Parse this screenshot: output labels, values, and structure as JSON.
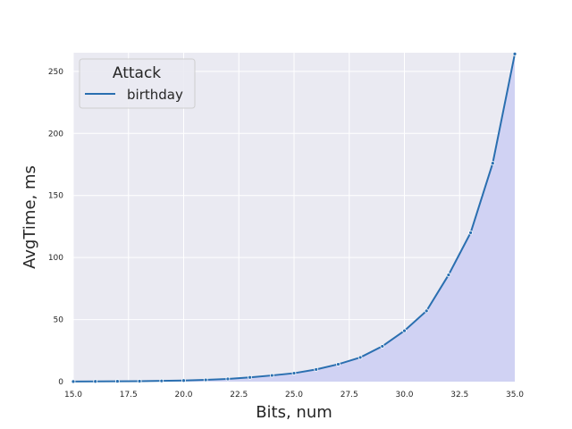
{
  "chart_data": {
    "type": "area",
    "xlabel": "Bits, num",
    "ylabel": "AvgTime, ms",
    "xlim": [
      15.0,
      35.0
    ],
    "ylim": [
      0,
      265
    ],
    "xticks": [
      15.0,
      17.5,
      20.0,
      22.5,
      25.0,
      27.5,
      30.0,
      32.5,
      35.0
    ],
    "xtick_labels": [
      "15.0",
      "17.5",
      "20.0",
      "22.5",
      "25.0",
      "27.5",
      "30.0",
      "32.5",
      "35.0"
    ],
    "yticks": [
      0,
      50,
      100,
      150,
      200,
      250
    ],
    "ytick_labels": [
      "0",
      "50",
      "100",
      "150",
      "200",
      "250"
    ],
    "grid": true,
    "legend": {
      "title": "Attack",
      "position": "top-left"
    },
    "series": [
      {
        "name": "birthday",
        "color": "#2a6fb0",
        "fill_color": "#d0d2f3",
        "x": [
          15,
          16,
          17,
          18,
          19,
          20,
          21,
          22,
          23,
          24,
          25,
          26,
          27,
          28,
          29,
          30,
          31,
          32,
          33,
          34,
          35
        ],
        "values": [
          0.1,
          0.2,
          0.3,
          0.4,
          0.6,
          0.9,
          1.4,
          2.2,
          3.4,
          5.0,
          6.8,
          9.8,
          14.0,
          19.5,
          28.5,
          41.0,
          57.0,
          86.0,
          120.0,
          176.0,
          264.0
        ]
      }
    ]
  }
}
